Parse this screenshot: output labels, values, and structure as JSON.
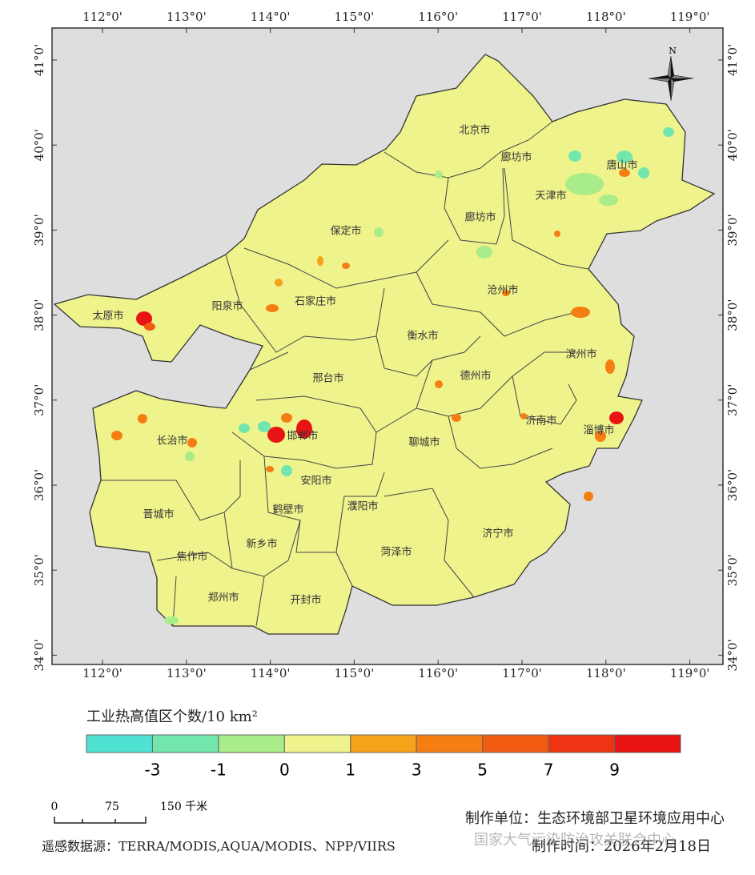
{
  "map": {
    "lon_ticks": [
      {
        "value": 112,
        "label": "112°0'"
      },
      {
        "value": 113,
        "label": "113°0'"
      },
      {
        "value": 114,
        "label": "114°0'"
      },
      {
        "value": 115,
        "label": "115°0'"
      },
      {
        "value": 116,
        "label": "116°0'"
      },
      {
        "value": 117,
        "label": "117°0'"
      },
      {
        "value": 118,
        "label": "118°0'"
      },
      {
        "value": 119,
        "label": "119°0'"
      }
    ],
    "lat_ticks": [
      {
        "value": 41,
        "label": "41°0'"
      },
      {
        "value": 40,
        "label": "40°0'"
      },
      {
        "value": 39,
        "label": "39°0'"
      },
      {
        "value": 38,
        "label": "38°0'"
      },
      {
        "value": 37,
        "label": "37°0'"
      },
      {
        "value": 36,
        "label": "36°0'"
      },
      {
        "value": 35,
        "label": "35°0'"
      },
      {
        "value": 34,
        "label": "34°0'"
      }
    ],
    "north": "N",
    "cities": [
      "北京市",
      "廊坊市",
      "唐山市",
      "天津市",
      "廊坊市",
      "保定市",
      "沧州市",
      "太原市",
      "阳泉市",
      "石家庄市",
      "衡水市",
      "滨州市",
      "邢台市",
      "德州市",
      "长治市",
      "邯郸市",
      "聊城市",
      "济南市",
      "淄博市",
      "安阳市",
      "鹤壁市",
      "濮阳市",
      "晋城市",
      "新乡市",
      "济宁市",
      "菏泽市",
      "焦作市",
      "郑州市",
      "开封市"
    ]
  },
  "legend": {
    "title": "工业热高值区个数/10 km²",
    "colors": [
      "#4fe2d2",
      "#73e6ad",
      "#a9ec8a",
      "#eef38c",
      "#f5a31a",
      "#f57e12",
      "#f25b12",
      "#ee3412",
      "#e81414"
    ],
    "labels": [
      "-3",
      "-1",
      "0",
      "1",
      "3",
      "5",
      "7",
      "9"
    ]
  },
  "scale_bar": {
    "labels": [
      "0",
      "75",
      "150 千米"
    ]
  },
  "footer": {
    "producer": "制作单位：生态环境部卫星环境应用中心",
    "source": "遥感数据源：TERRA/MODIS,AQUA/MODIS、NPP/VIIRS",
    "date": "制作时间：2026年2月18日",
    "watermark": "国家大气污染防治攻关联合中心"
  }
}
